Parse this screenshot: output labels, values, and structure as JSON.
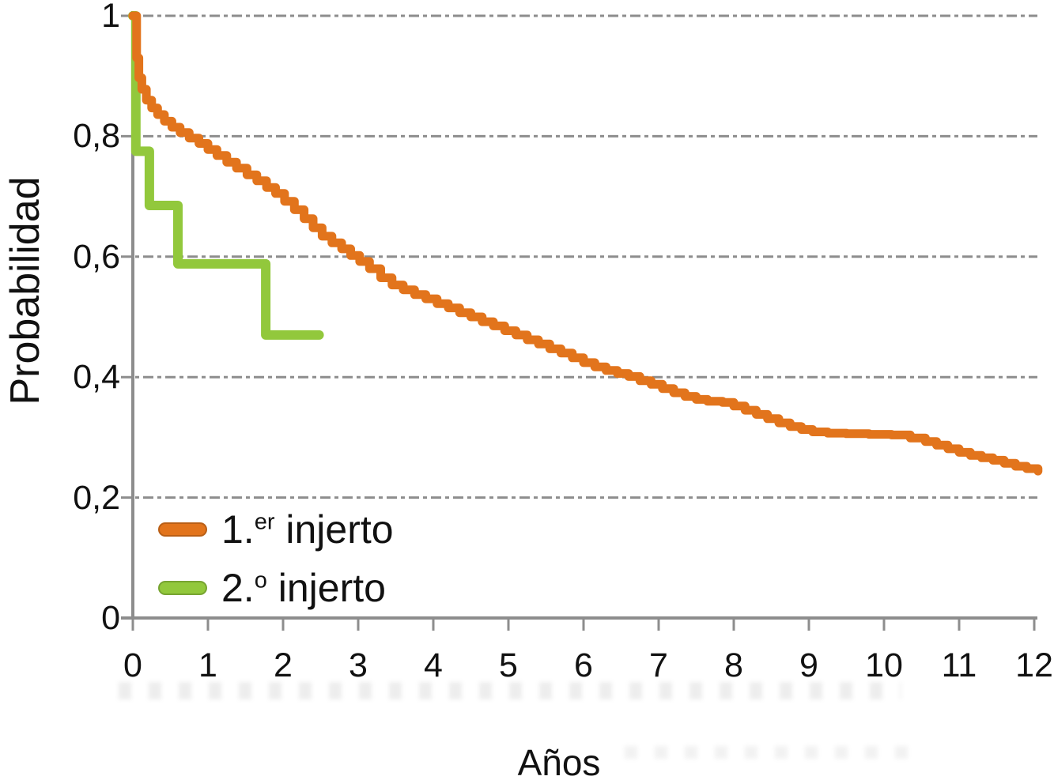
{
  "chart_data": {
    "type": "line",
    "subtype": "kaplan-meier-step-survival",
    "title": "",
    "xlabel": "Años",
    "ylabel": "Probabilidad",
    "xlim": [
      0,
      12.2
    ],
    "ylim": [
      0,
      1
    ],
    "x_ticks": [
      0,
      1,
      2,
      3,
      4,
      5,
      6,
      7,
      8,
      9,
      10,
      11,
      12
    ],
    "y_ticks": [
      {
        "value": 1.0,
        "label": "1"
      },
      {
        "value": 0.8,
        "label": "0,8"
      },
      {
        "value": 0.6,
        "label": "0,6"
      },
      {
        "value": 0.4,
        "label": "0,4"
      },
      {
        "value": 0.2,
        "label": "0,2"
      },
      {
        "value": 0.0,
        "label": "0"
      }
    ],
    "grid": {
      "horizontal_dashed_at_y_ticks": true,
      "color": "#8d8d8d"
    },
    "legend_position": "inside-lower-left",
    "series": [
      {
        "name": "1.er injerto",
        "color": "#E2741C",
        "line_width": 11,
        "points": [
          [
            0,
            1.0
          ],
          [
            0.05,
            0.93
          ],
          [
            0.08,
            0.897
          ],
          [
            0.12,
            0.878
          ],
          [
            0.18,
            0.86
          ],
          [
            0.25,
            0.847
          ],
          [
            0.33,
            0.836
          ],
          [
            0.42,
            0.825
          ],
          [
            0.52,
            0.815
          ],
          [
            0.63,
            0.806
          ],
          [
            0.75,
            0.797
          ],
          [
            0.88,
            0.788
          ],
          [
            1.0,
            0.778
          ],
          [
            1.12,
            0.768
          ],
          [
            1.25,
            0.757
          ],
          [
            1.38,
            0.747
          ],
          [
            1.52,
            0.736
          ],
          [
            1.65,
            0.726
          ],
          [
            1.78,
            0.715
          ],
          [
            1.9,
            0.705
          ],
          [
            2.02,
            0.692
          ],
          [
            2.15,
            0.678
          ],
          [
            2.28,
            0.663
          ],
          [
            2.4,
            0.648
          ],
          [
            2.52,
            0.634
          ],
          [
            2.65,
            0.623
          ],
          [
            2.78,
            0.613
          ],
          [
            2.9,
            0.602
          ],
          [
            3.02,
            0.592
          ],
          [
            3.15,
            0.58
          ],
          [
            3.3,
            0.565
          ],
          [
            3.45,
            0.553
          ],
          [
            3.6,
            0.545
          ],
          [
            3.75,
            0.537
          ],
          [
            3.9,
            0.53
          ],
          [
            4.05,
            0.522
          ],
          [
            4.2,
            0.515
          ],
          [
            4.35,
            0.507
          ],
          [
            4.5,
            0.5
          ],
          [
            4.65,
            0.492
          ],
          [
            4.8,
            0.485
          ],
          [
            4.95,
            0.477
          ],
          [
            5.1,
            0.47
          ],
          [
            5.25,
            0.462
          ],
          [
            5.4,
            0.455
          ],
          [
            5.55,
            0.447
          ],
          [
            5.7,
            0.44
          ],
          [
            5.85,
            0.432
          ],
          [
            6.0,
            0.424
          ],
          [
            6.15,
            0.417
          ],
          [
            6.3,
            0.411
          ],
          [
            6.45,
            0.406
          ],
          [
            6.6,
            0.401
          ],
          [
            6.75,
            0.394
          ],
          [
            6.9,
            0.388
          ],
          [
            7.05,
            0.381
          ],
          [
            7.2,
            0.374
          ],
          [
            7.35,
            0.368
          ],
          [
            7.5,
            0.363
          ],
          [
            7.65,
            0.36
          ],
          [
            7.85,
            0.358
          ],
          [
            8.0,
            0.352
          ],
          [
            8.15,
            0.345
          ],
          [
            8.3,
            0.338
          ],
          [
            8.45,
            0.331
          ],
          [
            8.6,
            0.324
          ],
          [
            8.75,
            0.318
          ],
          [
            8.9,
            0.313
          ],
          [
            9.05,
            0.309
          ],
          [
            9.25,
            0.307
          ],
          [
            9.5,
            0.306
          ],
          [
            9.8,
            0.305
          ],
          [
            10.1,
            0.304
          ],
          [
            10.35,
            0.299
          ],
          [
            10.55,
            0.293
          ],
          [
            10.7,
            0.287
          ],
          [
            10.85,
            0.281
          ],
          [
            11.0,
            0.275
          ],
          [
            11.15,
            0.27
          ],
          [
            11.3,
            0.266
          ],
          [
            11.45,
            0.262
          ],
          [
            11.6,
            0.257
          ],
          [
            11.75,
            0.252
          ],
          [
            11.9,
            0.248
          ],
          [
            12.05,
            0.244
          ]
        ]
      },
      {
        "name": "2.º injerto",
        "color": "#92C83C",
        "line_width": 12,
        "points": [
          [
            0,
            1.0
          ],
          [
            0.04,
            0.775
          ],
          [
            0.22,
            0.685
          ],
          [
            0.6,
            0.588
          ],
          [
            1.77,
            0.47
          ],
          [
            2.48,
            0.47
          ]
        ]
      }
    ]
  },
  "legend": {
    "items": [
      {
        "pre": "1.",
        "sup": "er",
        "post": " injerto",
        "color": "#E2741C"
      },
      {
        "pre": "2.",
        "sup": "o",
        "post": " injerto",
        "color": "#92C83C"
      }
    ]
  }
}
